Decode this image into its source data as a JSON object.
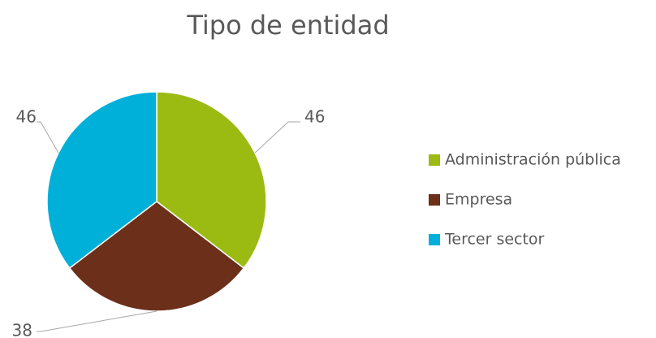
{
  "chart_data": {
    "type": "pie",
    "title": "Tipo de entidad",
    "categories": [
      "Administración pública",
      "Empresa",
      "Tercer sector"
    ],
    "values": [
      46,
      38,
      46
    ],
    "colors": [
      "#9bbb12",
      "#6b2f1a",
      "#00b0d8"
    ],
    "legend": "right"
  }
}
